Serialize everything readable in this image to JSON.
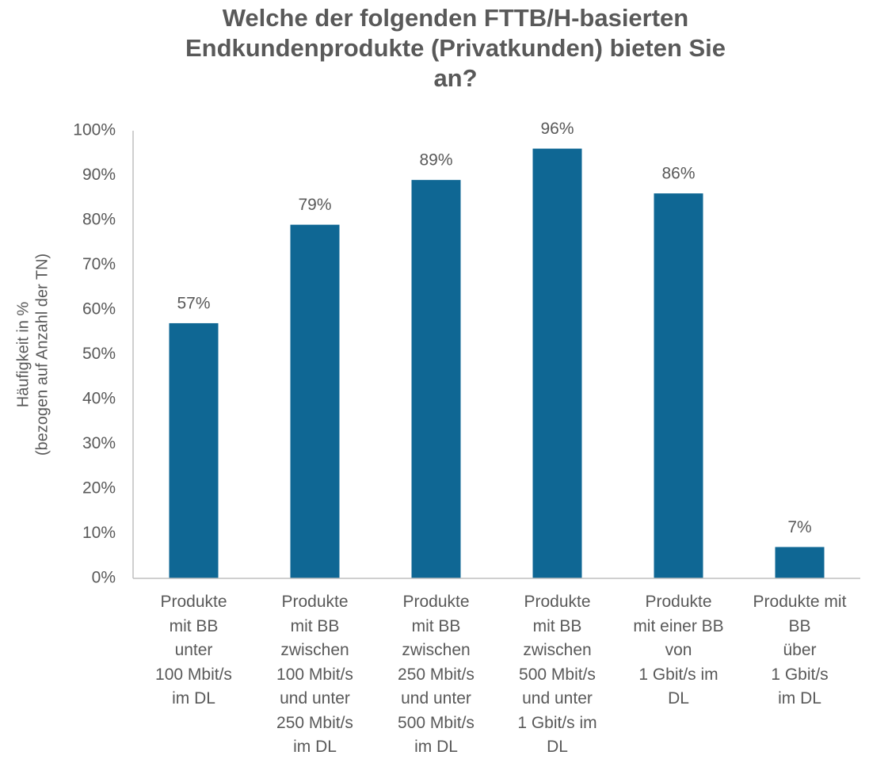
{
  "chart_data": {
    "type": "bar",
    "title": "Welche der folgenden FTTB/H-basierten\nEndkundenprodukte (Privatkunden) bieten Sie\nan?",
    "ylabel": [
      "Häufigkeit in %",
      "(bezogen auf Anzahl der TN)"
    ],
    "categories": [
      "Produkte\nmit BB\nunter\n100 Mbit/s\nim DL",
      "Produkte\nmit BB\nzwischen\n100 Mbit/s\nund unter\n250 Mbit/s\nim DL",
      "Produkte\nmit BB\nzwischen\n250 Mbit/s\nund unter\n500 Mbit/s\nim DL",
      "Produkte\nmit BB\nzwischen\n500 Mbit/s\nund unter\n1 Gbit/s im\nDL",
      "Produkte\nmit einer BB\nvon\n1 Gbit/s im\nDL",
      "Produkte mit\nBB\nüber\n1 Gbit/s\nim DL"
    ],
    "values": [
      57,
      79,
      89,
      96,
      86,
      7
    ],
    "value_labels": [
      "57%",
      "79%",
      "89%",
      "96%",
      "86%",
      "7%"
    ],
    "color": "#0f6794",
    "ylim": [
      0,
      100
    ],
    "yticks": [
      {
        "value": 0,
        "label": "0%"
      },
      {
        "value": 10,
        "label": "10%"
      },
      {
        "value": 20,
        "label": "20%"
      },
      {
        "value": 30,
        "label": "30%"
      },
      {
        "value": 40,
        "label": "40%"
      },
      {
        "value": 50,
        "label": "50%"
      },
      {
        "value": 60,
        "label": "60%"
      },
      {
        "value": 70,
        "label": "70%"
      },
      {
        "value": 80,
        "label": "80%"
      },
      {
        "value": 90,
        "label": "90%"
      },
      {
        "value": 100,
        "label": "100%"
      }
    ],
    "grid": false
  }
}
